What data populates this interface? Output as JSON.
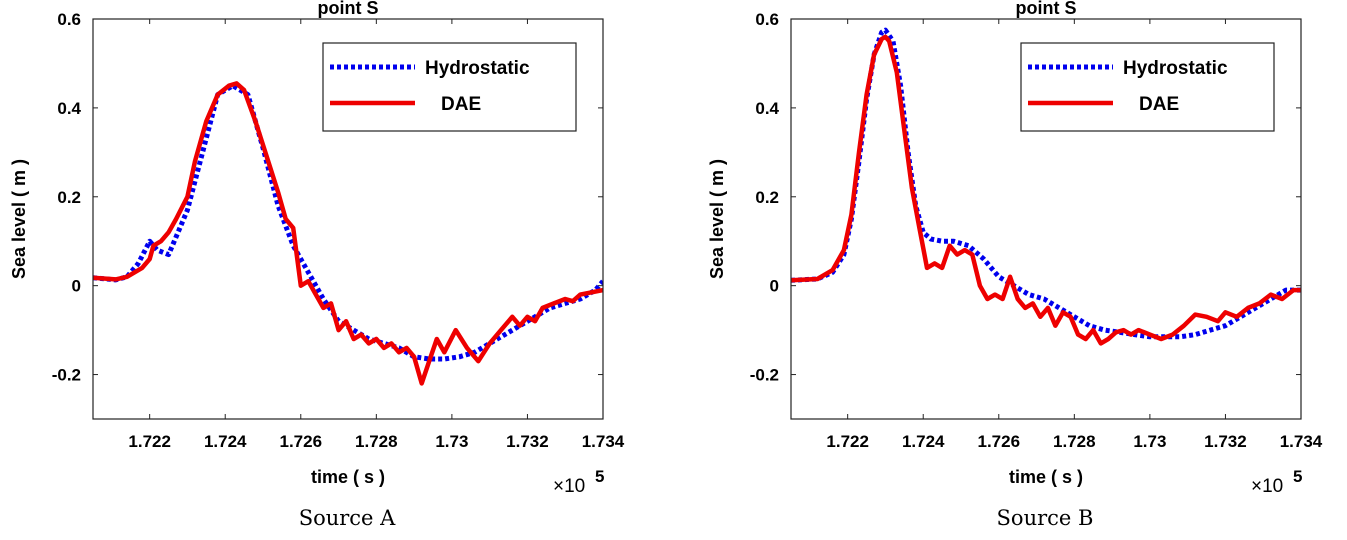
{
  "captions": [
    "Source A",
    "Source B"
  ],
  "chart_data": [
    {
      "type": "line",
      "title": "point S",
      "xlabel": "time ( s )",
      "ylabel": "Sea level ( m )",
      "x_multiplier": "×10",
      "x_multiplier_exp": "5",
      "xlim": [
        1.7205,
        1.734
      ],
      "ylim": [
        -0.3,
        0.6
      ],
      "xticks": [
        1.722,
        1.724,
        1.726,
        1.728,
        1.73,
        1.732,
        1.734
      ],
      "xtick_labels": [
        "1.722",
        "1.724",
        "1.726",
        "1.728",
        "1.73",
        "1.732",
        "1.734"
      ],
      "yticks": [
        -0.2,
        0,
        0.2,
        0.4,
        0.6
      ],
      "ytick_labels": [
        "-0.2",
        "0",
        "0.2",
        "0.4",
        "0.6"
      ],
      "legend_position": "top-right",
      "series": [
        {
          "name": "Hydrostatic",
          "color": "#0000ee",
          "style": "dotted",
          "x": [
            1.7205,
            1.7211,
            1.7214,
            1.7217,
            1.722,
            1.7222,
            1.7225,
            1.7228,
            1.723,
            1.7234,
            1.7238,
            1.7242,
            1.7246,
            1.725,
            1.7254,
            1.7258,
            1.7262,
            1.7266,
            1.727,
            1.7274,
            1.7278,
            1.7282,
            1.7286,
            1.729,
            1.7294,
            1.7298,
            1.7302,
            1.7306,
            1.731,
            1.7314,
            1.7318,
            1.7322,
            1.7326,
            1.733,
            1.7334,
            1.7338,
            1.734
          ],
          "y": [
            0.018,
            0.013,
            0.02,
            0.05,
            0.1,
            0.08,
            0.07,
            0.13,
            0.17,
            0.3,
            0.43,
            0.45,
            0.43,
            0.31,
            0.18,
            0.09,
            0.03,
            -0.03,
            -0.08,
            -0.1,
            -0.12,
            -0.13,
            -0.14,
            -0.16,
            -0.165,
            -0.165,
            -0.16,
            -0.15,
            -0.13,
            -0.11,
            -0.09,
            -0.07,
            -0.05,
            -0.04,
            -0.03,
            -0.01,
            0.01
          ]
        },
        {
          "name": "DAE",
          "color": "#ee0000",
          "style": "solid",
          "x": [
            1.7205,
            1.7211,
            1.7214,
            1.7218,
            1.722,
            1.7221,
            1.7223,
            1.7225,
            1.7227,
            1.723,
            1.7232,
            1.7235,
            1.7238,
            1.7241,
            1.7243,
            1.7245,
            1.7248,
            1.7251,
            1.7254,
            1.7256,
            1.7258,
            1.726,
            1.7262,
            1.7264,
            1.7266,
            1.7268,
            1.727,
            1.7272,
            1.7274,
            1.7276,
            1.7278,
            1.728,
            1.7282,
            1.7284,
            1.7286,
            1.7288,
            1.729,
            1.7292,
            1.7294,
            1.7296,
            1.7298,
            1.7301,
            1.7304,
            1.7307,
            1.731,
            1.7313,
            1.7316,
            1.7318,
            1.732,
            1.7322,
            1.7324,
            1.7327,
            1.733,
            1.7332,
            1.7334,
            1.7337,
            1.734
          ],
          "y": [
            0.018,
            0.014,
            0.02,
            0.04,
            0.06,
            0.09,
            0.1,
            0.12,
            0.15,
            0.2,
            0.28,
            0.37,
            0.43,
            0.45,
            0.455,
            0.44,
            0.37,
            0.29,
            0.21,
            0.15,
            0.13,
            0.0,
            0.01,
            -0.02,
            -0.05,
            -0.04,
            -0.1,
            -0.08,
            -0.12,
            -0.11,
            -0.13,
            -0.12,
            -0.14,
            -0.13,
            -0.15,
            -0.14,
            -0.16,
            -0.22,
            -0.17,
            -0.12,
            -0.15,
            -0.1,
            -0.14,
            -0.17,
            -0.13,
            -0.1,
            -0.07,
            -0.09,
            -0.07,
            -0.08,
            -0.05,
            -0.04,
            -0.03,
            -0.035,
            -0.02,
            -0.015,
            -0.01
          ]
        }
      ]
    },
    {
      "type": "line",
      "title": "point S",
      "xlabel": "time ( s )",
      "ylabel": "Sea level ( m )",
      "x_multiplier": "×10",
      "x_multiplier_exp": "5",
      "xlim": [
        1.7205,
        1.734
      ],
      "ylim": [
        -0.3,
        0.6
      ],
      "xticks": [
        1.722,
        1.724,
        1.726,
        1.728,
        1.73,
        1.732,
        1.734
      ],
      "xtick_labels": [
        "1.722",
        "1.724",
        "1.726",
        "1.728",
        "1.73",
        "1.732",
        "1.734"
      ],
      "yticks": [
        -0.2,
        0,
        0.2,
        0.4,
        0.6
      ],
      "ytick_labels": [
        "-0.2",
        "0",
        "0.2",
        "0.4",
        "0.6"
      ],
      "legend_position": "top-right",
      "series": [
        {
          "name": "Hydrostatic",
          "color": "#0000ee",
          "style": "dotted",
          "x": [
            1.7205,
            1.7212,
            1.7216,
            1.7219,
            1.7221,
            1.7223,
            1.7225,
            1.7227,
            1.7229,
            1.723,
            1.7232,
            1.7234,
            1.7236,
            1.7238,
            1.724,
            1.7242,
            1.7245,
            1.7248,
            1.7252,
            1.7256,
            1.726,
            1.7264,
            1.7268,
            1.7272,
            1.7276,
            1.728,
            1.7284,
            1.7288,
            1.7292,
            1.7296,
            1.73,
            1.7304,
            1.7308,
            1.7312,
            1.7316,
            1.732,
            1.7324,
            1.7328,
            1.7332,
            1.7336,
            1.734
          ],
          "y": [
            0.012,
            0.015,
            0.03,
            0.07,
            0.15,
            0.28,
            0.42,
            0.52,
            0.57,
            0.575,
            0.55,
            0.45,
            0.3,
            0.18,
            0.12,
            0.105,
            0.1,
            0.1,
            0.09,
            0.06,
            0.02,
            -0.0,
            -0.02,
            -0.03,
            -0.05,
            -0.07,
            -0.09,
            -0.1,
            -0.105,
            -0.11,
            -0.115,
            -0.115,
            -0.115,
            -0.11,
            -0.1,
            -0.09,
            -0.07,
            -0.05,
            -0.03,
            -0.01,
            -0.01
          ]
        },
        {
          "name": "DAE",
          "color": "#ee0000",
          "style": "solid",
          "x": [
            1.7205,
            1.7212,
            1.7216,
            1.7219,
            1.7221,
            1.7223,
            1.7225,
            1.7227,
            1.7229,
            1.723,
            1.7231,
            1.7233,
            1.7235,
            1.7237,
            1.7239,
            1.7241,
            1.7243,
            1.7245,
            1.7247,
            1.7249,
            1.7251,
            1.7253,
            1.7255,
            1.7257,
            1.7259,
            1.7261,
            1.7263,
            1.7265,
            1.7267,
            1.7269,
            1.7271,
            1.7273,
            1.7275,
            1.7277,
            1.7279,
            1.7281,
            1.7283,
            1.7285,
            1.7287,
            1.7289,
            1.7291,
            1.7293,
            1.7295,
            1.7297,
            1.73,
            1.7303,
            1.7306,
            1.7309,
            1.7312,
            1.7315,
            1.7318,
            1.732,
            1.7323,
            1.7326,
            1.7329,
            1.7332,
            1.7335,
            1.7338,
            1.734
          ],
          "y": [
            0.012,
            0.015,
            0.035,
            0.08,
            0.16,
            0.3,
            0.43,
            0.52,
            0.555,
            0.56,
            0.55,
            0.48,
            0.35,
            0.22,
            0.13,
            0.04,
            0.05,
            0.04,
            0.09,
            0.07,
            0.08,
            0.07,
            0.0,
            -0.03,
            -0.02,
            -0.03,
            0.02,
            -0.03,
            -0.05,
            -0.04,
            -0.07,
            -0.05,
            -0.09,
            -0.06,
            -0.07,
            -0.11,
            -0.12,
            -0.1,
            -0.13,
            -0.12,
            -0.105,
            -0.1,
            -0.11,
            -0.1,
            -0.11,
            -0.12,
            -0.11,
            -0.09,
            -0.065,
            -0.07,
            -0.08,
            -0.06,
            -0.07,
            -0.05,
            -0.04,
            -0.02,
            -0.03,
            -0.01,
            -0.01
          ]
        }
      ]
    }
  ]
}
